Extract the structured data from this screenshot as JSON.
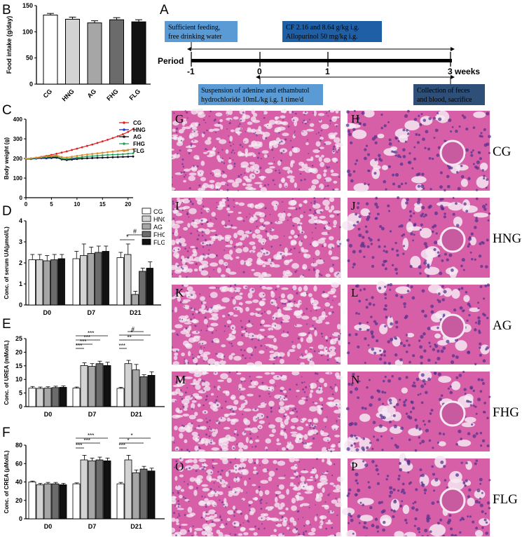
{
  "panels": {
    "a": "A",
    "b": "B",
    "c": "C",
    "d": "D",
    "e": "E",
    "f": "F",
    "tissue": [
      "G",
      "H",
      "I",
      "J",
      "K",
      "L",
      "M",
      "N",
      "O",
      "P"
    ]
  },
  "colors": {
    "CG": "#ffffff",
    "HNG": "#d3d3d3",
    "AG": "#a6a6a6",
    "FHG": "#6b6b6b",
    "FLG": "#111111",
    "box_light": "#5b9bd5",
    "box_dark": "#1f5fa5",
    "box_navy": "#2e4f78",
    "tissue_base": "#d65fa8",
    "tissue_lumen": "#f6e9f3",
    "tissue_nuclei": "#4b2f8c"
  },
  "timeline": {
    "period_label": "Period",
    "ticks": [
      "-1",
      "0",
      "1",
      "3 weeks"
    ],
    "box1": [
      "Sufficient feeding,",
      "free drinking water"
    ],
    "box2": [
      "CF 2.16 and 8.64 g/kg i.g.",
      "Allopurinol 50 mg/kg i.g."
    ],
    "box3": [
      "Suspension of adenine and ethambutol",
      "hydrochloride 10mL/kg i.g. 1 time/d"
    ],
    "box4": [
      "Collection of feces",
      "and blood, sacrifice"
    ]
  },
  "groups_right": [
    "CG",
    "HNG",
    "AG",
    "FHG",
    "FLG"
  ],
  "chart_data": [
    {
      "id": "B",
      "type": "bar",
      "categories": [
        "CG",
        "HNG",
        "AG",
        "FHG",
        "FLG"
      ],
      "values": [
        132,
        124,
        117,
        123,
        119
      ],
      "errors": [
        3,
        4,
        4,
        4,
        4
      ],
      "ylabel": "Food intake (g/day)",
      "ylim": [
        0,
        150
      ],
      "yticks": [
        "0",
        "50",
        "100",
        "150"
      ]
    },
    {
      "id": "C",
      "type": "line",
      "xlabel": "Time (days)",
      "ylabel": "Body weight (g)",
      "xlim": [
        0,
        21
      ],
      "ylim": [
        0,
        400
      ],
      "xticks": [
        "0",
        "5",
        "10",
        "15",
        "20"
      ],
      "yticks": [
        "0",
        "100",
        "200",
        "300",
        "400"
      ],
      "legend_position": "top-right",
      "x": [
        0,
        1,
        2,
        3,
        4,
        5,
        6,
        7,
        8,
        9,
        10,
        11,
        12,
        13,
        14,
        15,
        16,
        17,
        18,
        19,
        20,
        21
      ],
      "series": [
        {
          "name": "CG",
          "color": "#e02020",
          "values": [
            197,
            200,
            204,
            208,
            213,
            218,
            224,
            230,
            236,
            243,
            250,
            257,
            264,
            271,
            279,
            287,
            295,
            304,
            313,
            323,
            335,
            350
          ]
        },
        {
          "name": "HNG",
          "color": "#2233cc",
          "values": [
            198,
            197,
            199,
            201,
            200,
            202,
            203,
            198,
            196,
            197,
            199,
            200,
            201,
            202,
            203,
            204,
            205,
            206,
            207,
            208,
            209,
            210
          ]
        },
        {
          "name": "AG",
          "color": "#111111",
          "values": [
            197,
            198,
            201,
            203,
            204,
            205,
            206,
            195,
            192,
            194,
            197,
            199,
            201,
            202,
            203,
            204,
            205,
            206,
            207,
            208,
            209,
            210
          ]
        },
        {
          "name": "FHG",
          "color": "#22a055",
          "values": [
            198,
            199,
            202,
            205,
            207,
            209,
            211,
            200,
            198,
            201,
            204,
            207,
            210,
            212,
            214,
            216,
            218,
            219,
            220,
            222,
            224,
            226
          ]
        },
        {
          "name": "FLG",
          "color": "#d98a2b",
          "values": [
            199,
            201,
            204,
            207,
            210,
            213,
            216,
            207,
            205,
            209,
            213,
            217,
            220,
            223,
            226,
            229,
            232,
            235,
            238,
            241,
            244,
            247
          ]
        }
      ]
    },
    {
      "id": "D",
      "type": "bar",
      "categories": [
        "D0",
        "D7",
        "D21"
      ],
      "series": [
        {
          "name": "CG",
          "values": [
            2.15,
            2.2,
            2.25
          ],
          "errors": [
            0.25,
            0.35,
            0.25
          ]
        },
        {
          "name": "HNG",
          "values": [
            2.15,
            2.35,
            2.4
          ],
          "errors": [
            0.25,
            0.55,
            0.5
          ]
        },
        {
          "name": "AG",
          "values": [
            2.1,
            2.45,
            0.5
          ],
          "errors": [
            0.25,
            0.3,
            0.15
          ]
        },
        {
          "name": "FHG",
          "values": [
            2.15,
            2.5,
            1.6
          ],
          "errors": [
            0.25,
            0.3,
            0.15
          ]
        },
        {
          "name": "FLG",
          "values": [
            2.2,
            2.55,
            1.75
          ],
          "errors": [
            0.2,
            0.25,
            0.3
          ]
        }
      ],
      "ylabel": "Conc. of serum UA(μmol/L)",
      "ylim": [
        0,
        4
      ],
      "yticks": [
        "0",
        "1",
        "2",
        "3",
        "4"
      ],
      "legend_position": "top-right",
      "annotations": [
        "*",
        "#"
      ]
    },
    {
      "id": "E",
      "type": "bar",
      "categories": [
        "D0",
        "D7",
        "D21"
      ],
      "series": [
        {
          "name": "CG",
          "values": [
            6.8,
            6.8,
            6.7
          ],
          "errors": [
            0.6,
            0.4,
            0.4
          ]
        },
        {
          "name": "HNG",
          "values": [
            6.7,
            15.1,
            15.8
          ],
          "errors": [
            0.5,
            1.0,
            1.2
          ]
        },
        {
          "name": "AG",
          "values": [
            6.8,
            14.8,
            13.5
          ],
          "errors": [
            0.5,
            1.0,
            2.0
          ]
        },
        {
          "name": "FHG",
          "values": [
            7.0,
            15.8,
            11.0
          ],
          "errors": [
            0.5,
            0.9,
            0.7
          ]
        },
        {
          "name": "FLG",
          "values": [
            7.1,
            15.1,
            11.5
          ],
          "errors": [
            0.5,
            1.2,
            1.3
          ]
        }
      ],
      "ylabel": "Conc. of UREA (mMol/L)",
      "ylim": [
        0,
        25
      ],
      "yticks": [
        "0",
        "5",
        "10",
        "15",
        "20",
        "25"
      ],
      "annotations": [
        "***",
        "***",
        "***",
        "***",
        "***",
        "#",
        "**",
        "*"
      ]
    },
    {
      "id": "F",
      "type": "bar",
      "categories": [
        "D0",
        "D7",
        "D21"
      ],
      "series": [
        {
          "name": "CG",
          "values": [
            40,
            38,
            38
          ],
          "errors": [
            1,
            1,
            1.5
          ]
        },
        {
          "name": "HNG",
          "values": [
            37,
            64,
            64
          ],
          "errors": [
            1.5,
            5,
            5
          ]
        },
        {
          "name": "AG",
          "values": [
            38,
            63,
            50
          ],
          "errors": [
            1.5,
            3,
            3
          ]
        },
        {
          "name": "FHG",
          "values": [
            38,
            64,
            54
          ],
          "errors": [
            1.5,
            3,
            3
          ]
        },
        {
          "name": "FLG",
          "values": [
            37,
            63,
            52
          ],
          "errors": [
            1.5,
            3,
            3
          ]
        }
      ],
      "ylabel": "Conc. of CREA (μMol/L)",
      "ylim": [
        0,
        80
      ],
      "yticks": [
        "0",
        "20",
        "40",
        "60",
        "80"
      ],
      "annotations": [
        "***",
        "***",
        "***",
        "***",
        "*",
        "*"
      ]
    }
  ]
}
